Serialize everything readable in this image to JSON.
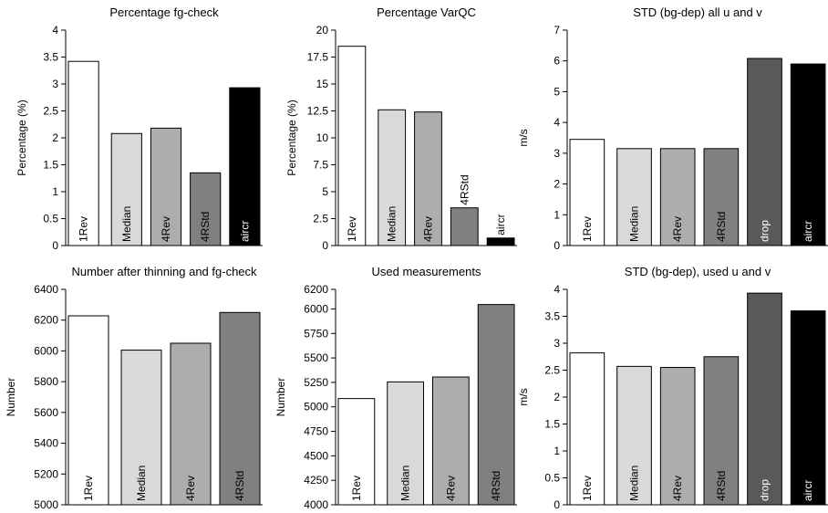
{
  "chart_data": [
    {
      "type": "bar",
      "title": "Percentage fg-check",
      "ylabel": "Percentage (%)",
      "ylim": [
        0,
        4
      ],
      "yticks": [
        "0",
        "0.5",
        "1",
        "1.5",
        "2",
        "2.5",
        "3",
        "3.5",
        "4"
      ],
      "categories": [
        "1Rev",
        "Median",
        "4Rev",
        "4RStd",
        "aircr"
      ],
      "values": [
        3.42,
        2.08,
        2.18,
        1.35,
        2.93
      ],
      "colors": [
        "#ffffff",
        "#d9d9d9",
        "#adadad",
        "#808080",
        "#000000"
      ]
    },
    {
      "type": "bar",
      "title": "Percentage VarQC",
      "ylabel": "Percentage (%)",
      "ylim": [
        0,
        20
      ],
      "yticks": [
        "0",
        "2.5",
        "5",
        "7.5",
        "10",
        "12.5",
        "15",
        "17.5",
        "20"
      ],
      "categories": [
        "1Rev",
        "Median",
        "4Rev",
        "4RStd",
        "aircr"
      ],
      "values": [
        18.5,
        12.6,
        12.4,
        3.5,
        0.7
      ],
      "colors": [
        "#ffffff",
        "#d9d9d9",
        "#adadad",
        "#808080",
        "#000000"
      ]
    },
    {
      "type": "bar",
      "title": "STD (bg-dep) all u and v",
      "ylabel": "m/s",
      "ylim": [
        0,
        7
      ],
      "yticks": [
        "0",
        "1",
        "2",
        "3",
        "4",
        "5",
        "6",
        "7"
      ],
      "categories": [
        "1Rev",
        "Median",
        "4Rev",
        "4RStd",
        "drop",
        "aircr"
      ],
      "values": [
        3.45,
        3.15,
        3.15,
        3.15,
        6.08,
        5.9
      ],
      "colors": [
        "#ffffff",
        "#d9d9d9",
        "#adadad",
        "#808080",
        "#595959",
        "#000000"
      ]
    },
    {
      "type": "bar",
      "title": "Number after thinning and fg-check",
      "ylabel": "Number",
      "ylim": [
        5000,
        6400
      ],
      "yticks": [
        "5000",
        "5200",
        "5400",
        "5600",
        "5800",
        "6000",
        "6200",
        "6400"
      ],
      "categories": [
        "1Rev",
        "Median",
        "4Rev",
        "4RStd"
      ],
      "values": [
        6228,
        6005,
        6050,
        6250
      ],
      "colors": [
        "#ffffff",
        "#d9d9d9",
        "#adadad",
        "#808080"
      ]
    },
    {
      "type": "bar",
      "title": "Used measurements",
      "ylabel": "Number",
      "ylim": [
        4000,
        6200
      ],
      "yticks": [
        "4000",
        "4250",
        "4500",
        "4750",
        "5000",
        "5250",
        "5500",
        "5750",
        "6000",
        "6200"
      ],
      "categories": [
        "1Rev",
        "Median",
        "4Rev",
        "4RStd"
      ],
      "values": [
        5085,
        5255,
        5305,
        6045
      ],
      "colors": [
        "#ffffff",
        "#d9d9d9",
        "#adadad",
        "#808080"
      ]
    },
    {
      "type": "bar",
      "title": "STD (bg-dep), used u and v",
      "ylabel": "m/s",
      "ylim": [
        0,
        4
      ],
      "yticks": [
        "0",
        "0.5",
        "1",
        "1.5",
        "2",
        "2.5",
        "3",
        "3.5",
        "4"
      ],
      "categories": [
        "1Rev",
        "Median",
        "4Rev",
        "4RStd",
        "drop",
        "aircr"
      ],
      "values": [
        2.82,
        2.57,
        2.55,
        2.75,
        3.93,
        3.6
      ],
      "colors": [
        "#ffffff",
        "#d9d9d9",
        "#adadad",
        "#808080",
        "#595959",
        "#000000"
      ]
    }
  ]
}
